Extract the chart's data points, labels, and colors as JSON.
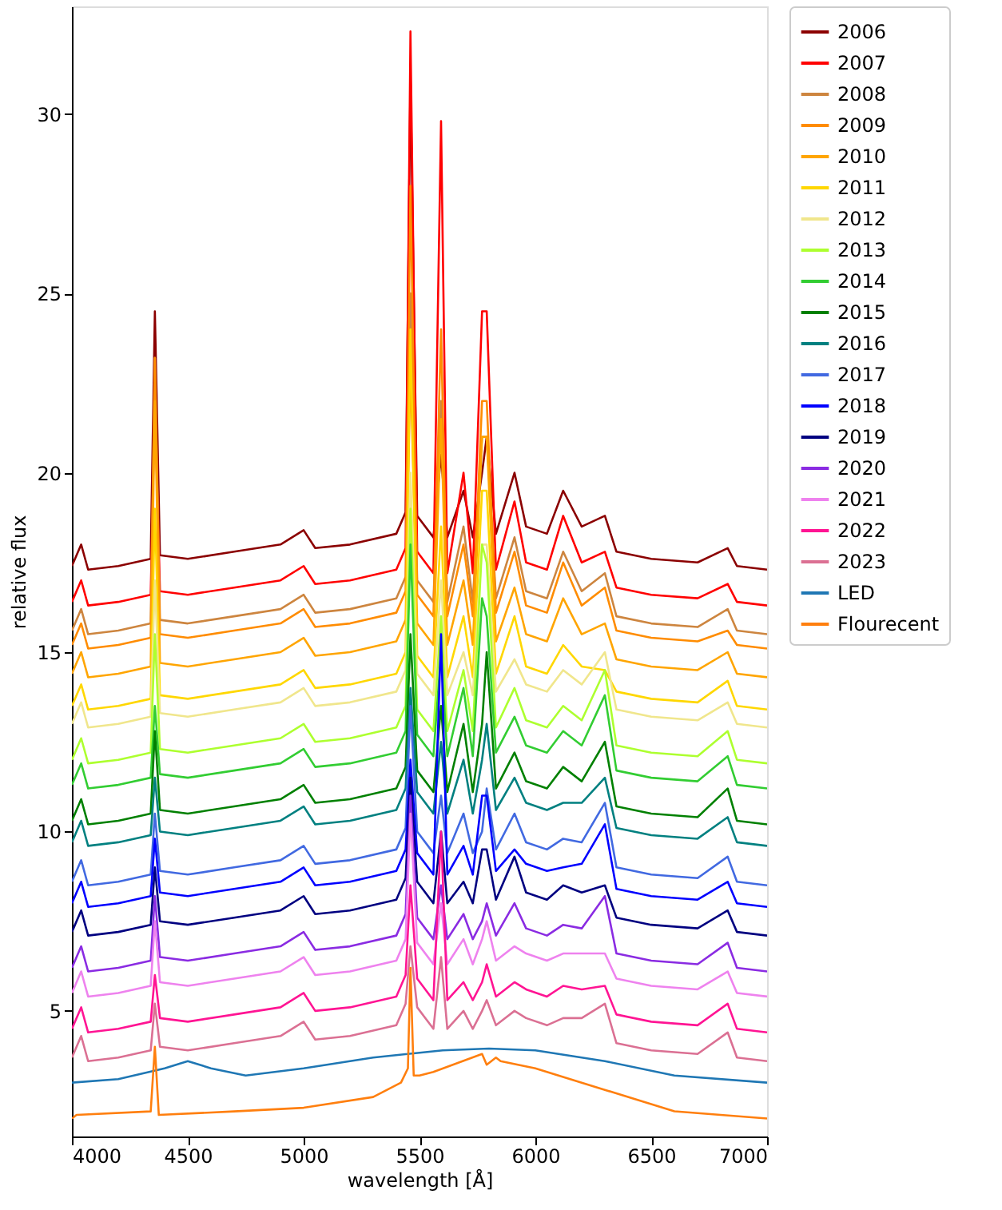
{
  "chart_data": {
    "type": "line",
    "xlabel": "wavelength [Å]",
    "ylabel": "relative flux",
    "x": [
      4000,
      4040,
      4070,
      4200,
      4340,
      4358,
      4380,
      4500,
      4700,
      4900,
      5000,
      5050,
      5200,
      5400,
      5440,
      5461,
      5490,
      5560,
      5593,
      5620,
      5690,
      5730,
      5770,
      5790,
      5830,
      5910,
      5960,
      6050,
      6120,
      6200,
      6300,
      6350,
      6500,
      6700,
      6830,
      6870,
      7000
    ],
    "xlim": [
      4000,
      7000
    ],
    "xticks": [
      4000,
      4500,
      5000,
      5500,
      6000,
      6500,
      7000
    ],
    "ylim": [
      1.5,
      33
    ],
    "yticks": [
      5,
      10,
      15,
      20,
      25,
      30
    ],
    "grid": false,
    "legend": "top right",
    "line_style": "solid",
    "marker": "none",
    "series": [
      {
        "name": "2006",
        "color": "#8b0000",
        "values": [
          17.4,
          18.0,
          17.3,
          17.4,
          17.6,
          24.5,
          17.7,
          17.6,
          17.8,
          18.0,
          18.4,
          17.9,
          18.0,
          18.3,
          18.9,
          31.0,
          18.8,
          18.2,
          20.5,
          18.2,
          19.5,
          18.2,
          20.0,
          21.0,
          18.3,
          20.0,
          18.5,
          18.3,
          19.5,
          18.5,
          18.8,
          17.8,
          17.6,
          17.5,
          17.9,
          17.4,
          17.3
        ]
      },
      {
        "name": "2007",
        "color": "#ff0000",
        "values": [
          16.4,
          17.0,
          16.3,
          16.4,
          16.6,
          22.0,
          16.7,
          16.6,
          16.8,
          17.0,
          17.4,
          16.9,
          17.0,
          17.3,
          17.9,
          32.3,
          17.8,
          17.2,
          29.8,
          17.2,
          20.0,
          17.2,
          24.5,
          24.5,
          17.3,
          19.2,
          17.5,
          17.3,
          18.8,
          17.5,
          17.8,
          16.8,
          16.6,
          16.5,
          16.9,
          16.4,
          16.3
        ]
      },
      {
        "name": "2008",
        "color": "#cd853f",
        "values": [
          15.6,
          16.2,
          15.5,
          15.6,
          15.8,
          23.2,
          15.9,
          15.8,
          16.0,
          16.2,
          16.6,
          16.1,
          16.2,
          16.5,
          17.1,
          25.0,
          17.0,
          16.4,
          22.0,
          16.4,
          18.5,
          16.4,
          21.0,
          21.0,
          16.5,
          18.2,
          16.7,
          16.5,
          17.8,
          16.7,
          17.2,
          16.0,
          15.8,
          15.7,
          16.2,
          15.6,
          15.5
        ]
      },
      {
        "name": "2009",
        "color": "#ff8c00",
        "values": [
          15.2,
          15.8,
          15.1,
          15.2,
          15.4,
          23.2,
          15.5,
          15.4,
          15.6,
          15.8,
          16.2,
          15.7,
          15.8,
          16.1,
          16.7,
          28.0,
          16.6,
          16.0,
          24.0,
          16.0,
          18.0,
          16.0,
          22.0,
          22.0,
          16.1,
          17.8,
          16.3,
          16.1,
          17.5,
          16.3,
          16.8,
          15.6,
          15.4,
          15.3,
          15.6,
          15.2,
          15.1
        ]
      },
      {
        "name": "2010",
        "color": "#ffa500",
        "values": [
          14.4,
          15.0,
          14.3,
          14.4,
          14.6,
          22.0,
          14.7,
          14.6,
          14.8,
          15.0,
          15.4,
          14.9,
          15.0,
          15.3,
          15.9,
          23.0,
          15.8,
          15.2,
          21.5,
          15.2,
          17.0,
          15.2,
          21.0,
          21.0,
          15.3,
          16.8,
          15.5,
          15.3,
          16.5,
          15.5,
          15.8,
          14.8,
          14.6,
          14.5,
          15.0,
          14.4,
          14.3
        ]
      },
      {
        "name": "2011",
        "color": "#ffd700",
        "values": [
          13.5,
          14.1,
          13.4,
          13.5,
          13.7,
          19.0,
          13.8,
          13.7,
          13.9,
          14.1,
          14.5,
          14.0,
          14.1,
          14.4,
          15.0,
          24.0,
          14.9,
          14.3,
          18.5,
          14.3,
          16.0,
          14.3,
          19.5,
          19.5,
          14.4,
          16.0,
          14.6,
          14.4,
          15.2,
          14.6,
          14.5,
          13.9,
          13.7,
          13.6,
          14.2,
          13.5,
          13.4
        ]
      },
      {
        "name": "2012",
        "color": "#f0e68c",
        "values": [
          13.0,
          13.6,
          12.9,
          13.0,
          13.2,
          17.0,
          13.3,
          13.2,
          13.4,
          13.6,
          14.0,
          13.5,
          13.6,
          13.9,
          14.5,
          20.0,
          14.4,
          13.8,
          17.0,
          13.8,
          15.0,
          13.8,
          18.0,
          18.0,
          13.9,
          14.8,
          14.1,
          13.9,
          14.5,
          14.1,
          15.0,
          13.4,
          13.2,
          13.1,
          13.6,
          13.0,
          12.9
        ]
      },
      {
        "name": "2013",
        "color": "#adff2f",
        "values": [
          12.0,
          12.6,
          11.9,
          12.0,
          12.2,
          15.5,
          12.3,
          12.2,
          12.4,
          12.6,
          13.0,
          12.5,
          12.6,
          12.9,
          13.5,
          19.0,
          13.4,
          12.8,
          16.0,
          12.8,
          14.5,
          12.8,
          18.0,
          17.5,
          12.9,
          14.0,
          13.1,
          12.9,
          13.5,
          13.1,
          14.5,
          12.4,
          12.2,
          12.1,
          12.8,
          12.0,
          11.9
        ]
      },
      {
        "name": "2014",
        "color": "#32cd32",
        "values": [
          11.3,
          11.9,
          11.2,
          11.3,
          11.5,
          13.5,
          11.6,
          11.5,
          11.7,
          11.9,
          12.3,
          11.8,
          11.9,
          12.2,
          12.8,
          18.0,
          12.7,
          12.1,
          15.0,
          12.1,
          14.0,
          12.1,
          16.5,
          16.0,
          12.2,
          13.2,
          12.4,
          12.2,
          12.8,
          12.4,
          13.8,
          11.7,
          11.5,
          11.4,
          12.1,
          11.3,
          11.2
        ]
      },
      {
        "name": "2015",
        "color": "#008000",
        "values": [
          10.3,
          10.9,
          10.2,
          10.3,
          10.5,
          12.8,
          10.6,
          10.5,
          10.7,
          10.9,
          11.3,
          10.8,
          10.9,
          11.2,
          11.8,
          15.5,
          11.7,
          11.1,
          13.5,
          11.1,
          13.0,
          11.1,
          13.0,
          15.0,
          11.2,
          12.2,
          11.4,
          11.2,
          11.8,
          11.4,
          12.5,
          10.7,
          10.5,
          10.4,
          11.2,
          10.3,
          10.2
        ]
      },
      {
        "name": "2016",
        "color": "#008080",
        "values": [
          9.7,
          10.3,
          9.6,
          9.7,
          9.9,
          11.5,
          10.0,
          9.9,
          10.1,
          10.3,
          10.7,
          10.2,
          10.3,
          10.6,
          11.2,
          14.0,
          11.1,
          10.5,
          12.5,
          10.5,
          12.0,
          10.5,
          12.0,
          13.0,
          10.6,
          11.5,
          10.8,
          10.6,
          10.8,
          10.8,
          11.5,
          10.1,
          9.9,
          9.8,
          10.4,
          9.7,
          9.6
        ]
      },
      {
        "name": "2017",
        "color": "#4169e1",
        "values": [
          8.6,
          9.2,
          8.5,
          8.6,
          8.8,
          10.5,
          8.9,
          8.8,
          9.0,
          9.2,
          9.6,
          9.1,
          9.2,
          9.5,
          10.1,
          13.5,
          10.0,
          9.4,
          11.0,
          9.4,
          10.5,
          9.4,
          10.0,
          11.2,
          9.5,
          10.5,
          9.7,
          9.5,
          9.8,
          9.7,
          10.8,
          9.0,
          8.8,
          8.7,
          9.3,
          8.6,
          8.5
        ]
      },
      {
        "name": "2018",
        "color": "#0000ff",
        "values": [
          8.0,
          8.6,
          7.9,
          8.0,
          8.2,
          9.8,
          8.3,
          8.2,
          8.4,
          8.6,
          9.0,
          8.5,
          8.6,
          8.9,
          9.5,
          12.0,
          9.4,
          8.8,
          15.5,
          8.8,
          9.6,
          8.8,
          11.0,
          11.0,
          8.9,
          9.5,
          9.1,
          8.9,
          9.0,
          9.1,
          10.2,
          8.4,
          8.2,
          8.1,
          8.6,
          8.0,
          7.9
        ]
      },
      {
        "name": "2019",
        "color": "#000080",
        "values": [
          7.2,
          7.8,
          7.1,
          7.2,
          7.4,
          9.0,
          7.5,
          7.4,
          7.6,
          7.8,
          8.2,
          7.7,
          7.8,
          8.1,
          8.7,
          11.5,
          8.6,
          8.0,
          10.0,
          8.0,
          8.6,
          8.0,
          9.5,
          9.5,
          8.1,
          9.3,
          8.3,
          8.1,
          8.5,
          8.3,
          8.5,
          7.6,
          7.4,
          7.3,
          7.8,
          7.2,
          7.1
        ]
      },
      {
        "name": "2020",
        "color": "#8a2be2",
        "values": [
          6.2,
          6.8,
          6.1,
          6.2,
          6.4,
          8.2,
          6.5,
          6.4,
          6.6,
          6.8,
          7.2,
          6.7,
          6.8,
          7.1,
          7.7,
          11.0,
          7.6,
          7.0,
          8.5,
          7.0,
          7.7,
          7.0,
          7.5,
          8.0,
          7.1,
          8.0,
          7.3,
          7.1,
          7.4,
          7.3,
          8.2,
          6.6,
          6.4,
          6.3,
          6.9,
          6.2,
          6.1
        ]
      },
      {
        "name": "2021",
        "color": "#ee82ee",
        "values": [
          5.5,
          6.1,
          5.4,
          5.5,
          5.7,
          7.5,
          5.8,
          5.7,
          5.9,
          6.1,
          6.5,
          6.0,
          6.1,
          6.4,
          7.0,
          10.5,
          6.9,
          6.3,
          8.0,
          6.3,
          7.0,
          6.3,
          7.0,
          7.5,
          6.4,
          6.8,
          6.6,
          6.4,
          6.6,
          6.6,
          6.6,
          5.9,
          5.7,
          5.6,
          6.1,
          5.5,
          5.4
        ]
      },
      {
        "name": "2022",
        "color": "#ff1493",
        "values": [
          4.5,
          5.1,
          4.4,
          4.5,
          4.7,
          6.0,
          4.8,
          4.7,
          4.9,
          5.1,
          5.5,
          5.0,
          5.1,
          5.4,
          6.0,
          8.5,
          5.9,
          5.3,
          10.0,
          5.3,
          5.8,
          5.3,
          5.8,
          6.3,
          5.4,
          5.8,
          5.6,
          5.4,
          5.7,
          5.6,
          5.7,
          4.9,
          4.7,
          4.6,
          5.2,
          4.5,
          4.4
        ]
      },
      {
        "name": "2023",
        "color": "#db7093",
        "values": [
          3.7,
          4.3,
          3.6,
          3.7,
          3.9,
          5.2,
          4.0,
          3.9,
          4.1,
          4.3,
          4.7,
          4.2,
          4.3,
          4.6,
          5.2,
          6.8,
          5.1,
          4.5,
          6.5,
          4.5,
          5.0,
          4.5,
          5.0,
          5.3,
          4.6,
          5.0,
          4.8,
          4.6,
          4.8,
          4.8,
          5.2,
          4.1,
          3.9,
          3.8,
          4.4,
          3.7,
          3.6
        ]
      },
      {
        "name": "LED",
        "color": "#1f77b4",
        "x": [
          4000,
          4200,
          4400,
          4500,
          4600,
          4750,
          5000,
          5300,
          5600,
          5800,
          6000,
          6300,
          6600,
          7000
        ],
        "values": [
          3.0,
          3.1,
          3.4,
          3.6,
          3.4,
          3.2,
          3.4,
          3.7,
          3.9,
          3.95,
          3.9,
          3.6,
          3.2,
          3.0
        ]
      },
      {
        "name": "Flourecent",
        "color": "#ff7f0e",
        "x": [
          4000,
          4020,
          4340,
          4358,
          4375,
          4700,
          5000,
          5300,
          5420,
          5450,
          5461,
          5475,
          5500,
          5560,
          5770,
          5790,
          5830,
          5850,
          6000,
          6300,
          6600,
          7000
        ],
        "values": [
          2.0,
          2.1,
          2.2,
          4.0,
          2.1,
          2.2,
          2.3,
          2.6,
          3.0,
          3.4,
          6.2,
          3.2,
          3.2,
          3.3,
          3.8,
          3.5,
          3.7,
          3.6,
          3.4,
          2.8,
          2.2,
          2.0
        ]
      }
    ]
  }
}
